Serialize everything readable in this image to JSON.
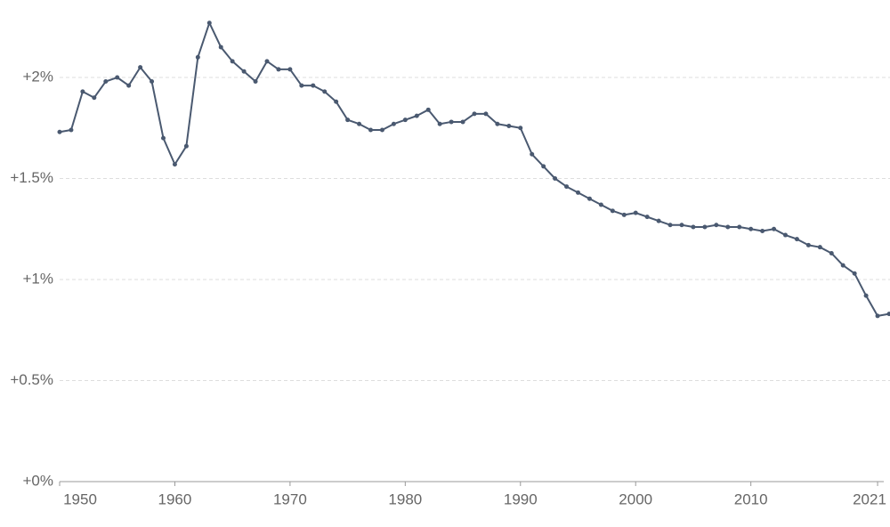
{
  "chart_data": {
    "type": "line",
    "x": [
      1950,
      1951,
      1952,
      1953,
      1954,
      1955,
      1956,
      1957,
      1958,
      1959,
      1960,
      1961,
      1962,
      1963,
      1964,
      1965,
      1966,
      1967,
      1968,
      1969,
      1970,
      1971,
      1972,
      1973,
      1974,
      1975,
      1976,
      1977,
      1978,
      1979,
      1980,
      1981,
      1982,
      1983,
      1984,
      1985,
      1986,
      1987,
      1988,
      1989,
      1990,
      1991,
      1992,
      1993,
      1994,
      1995,
      1996,
      1997,
      1998,
      1999,
      2000,
      2001,
      2002,
      2003,
      2004,
      2005,
      2006,
      2007,
      2008,
      2009,
      2010,
      2011,
      2012,
      2013,
      2014,
      2015,
      2016,
      2017,
      2018,
      2019,
      2020,
      2021,
      2022
    ],
    "series": [
      {
        "color": "#4a5970",
        "values": [
          1.73,
          1.74,
          1.93,
          1.9,
          1.98,
          2.0,
          1.96,
          2.05,
          1.98,
          1.7,
          1.57,
          1.66,
          2.1,
          2.27,
          2.15,
          2.08,
          2.03,
          1.98,
          2.08,
          2.04,
          2.04,
          1.96,
          1.96,
          1.93,
          1.88,
          1.79,
          1.77,
          1.74,
          1.74,
          1.77,
          1.79,
          1.81,
          1.84,
          1.77,
          1.78,
          1.78,
          1.82,
          1.82,
          1.77,
          1.76,
          1.75,
          1.62,
          1.56,
          1.5,
          1.46,
          1.43,
          1.4,
          1.37,
          1.34,
          1.32,
          1.33,
          1.31,
          1.29,
          1.27,
          1.27,
          1.26,
          1.26,
          1.27,
          1.26,
          1.26,
          1.25,
          1.24,
          1.25,
          1.22,
          1.2,
          1.17,
          1.16,
          1.13,
          1.07,
          1.03,
          0.92,
          0.82,
          0.83
        ]
      }
    ],
    "xlim": [
      1950,
      2022
    ],
    "xticks": [
      1950,
      1960,
      1970,
      1980,
      1990,
      2000,
      2010,
      2021
    ],
    "ylim": [
      0,
      2.3
    ],
    "yticks": [
      {
        "value": 0,
        "label": "+0%"
      },
      {
        "value": 0.5,
        "label": "+0.5%"
      },
      {
        "value": 1,
        "label": "+1%"
      },
      {
        "value": 1.5,
        "label": "+1.5%"
      },
      {
        "value": 2,
        "label": "+2%"
      }
    ],
    "grid": true
  }
}
